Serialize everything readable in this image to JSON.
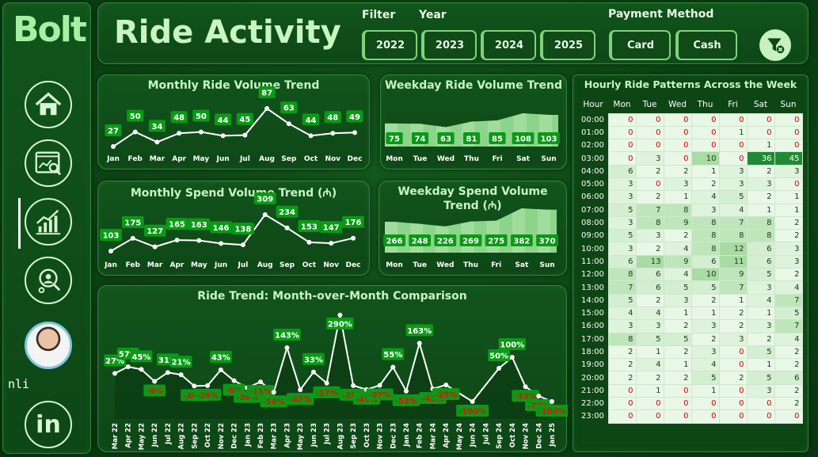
{
  "brand": {
    "logo": "Bolt",
    "user_label": "nli"
  },
  "header": {
    "title": "Ride Activity",
    "filter_label": "Filter",
    "year_label": "Year",
    "payment_label": "Payment Method",
    "years": [
      "2022",
      "2023",
      "2024",
      "2025"
    ],
    "payments": [
      "Card",
      "Cash"
    ]
  },
  "colors": {
    "accent": "#a7f0a3",
    "label_bg": "#0a9a16",
    "label_text": "#ffffff",
    "neg_text": "#e01010"
  },
  "monthly_rides": {
    "title": "Monthly Ride Volume Trend",
    "chart_data": {
      "type": "line",
      "categories": [
        "Jan",
        "Feb",
        "Mar",
        "Apr",
        "May",
        "Jun",
        "Jul",
        "Aug",
        "Sep",
        "Oct",
        "Nov",
        "Dec"
      ],
      "values": [
        27,
        50,
        34,
        48,
        50,
        44,
        45,
        87,
        63,
        44,
        48,
        49
      ]
    }
  },
  "monthly_spend": {
    "title": "Monthly Spend Volume Trend (₼)",
    "chart_data": {
      "type": "line",
      "categories": [
        "Jan",
        "Feb",
        "Mar",
        "Apr",
        "May",
        "Jun",
        "Jul",
        "Aug",
        "Sep",
        "Oct",
        "Nov",
        "Dec"
      ],
      "values": [
        103,
        175,
        127,
        165,
        163,
        146,
        138,
        309,
        234,
        153,
        147,
        176
      ]
    }
  },
  "weekday_rides": {
    "title": "Weekday Ride Volume Trend",
    "chart_data": {
      "type": "area",
      "categories": [
        "Mon",
        "Tue",
        "Wed",
        "Thu",
        "Fri",
        "Sat",
        "Sun"
      ],
      "values": [
        75,
        74,
        63,
        81,
        85,
        108,
        103
      ]
    }
  },
  "weekday_spend": {
    "title": "Weekday Spend Volume Trend (₼)",
    "chart_data": {
      "type": "area",
      "categories": [
        "Mon",
        "Tue",
        "Wed",
        "Thu",
        "Fri",
        "Sat",
        "Sun"
      ],
      "values": [
        266,
        248,
        226,
        269,
        275,
        382,
        370
      ]
    }
  },
  "mom": {
    "title": "Ride Trend: Month-over-Month Comparison",
    "chart_data": {
      "type": "line",
      "categories": [
        "Mar 22",
        "Apr 22",
        "May 22",
        "Jun 22",
        "Jul 22",
        "Aug 22",
        "Sep 22",
        "Oct 22",
        "Nov 22",
        "Dec 22",
        "Jan 23",
        "Feb 23",
        "Mar 23",
        "Apr 23",
        "May 23",
        "Jun 23",
        "Jul 23",
        "Aug 23",
        "Sep 23",
        "Oct 23",
        "Nov 23",
        "Dec 23",
        "Jan 24",
        "Feb 24",
        "Mar 24",
        "Apr 24",
        "May 24",
        "Jun 24",
        "Jul 24",
        "Sep 24",
        "Oct 24",
        "Nov 24",
        "Dec 24",
        "Jan 25"
      ],
      "values": [
        27,
        57,
        45,
        -9,
        31,
        21,
        -30,
        -28,
        43,
        -6,
        -38,
        -11,
        -58,
        143,
        -47,
        33,
        -17,
        290,
        -28,
        -46,
        -27,
        55,
        -53,
        163,
        -43,
        -25,
        null,
        -100,
        null,
        50,
        100,
        -33,
        -75,
        -100
      ],
      "labels": [
        "27%",
        "57%",
        "45%",
        "-9%",
        "31%",
        "21%",
        "-30%",
        "-28%",
        "43%",
        "-6%",
        "-38%",
        "-11%",
        "-58%",
        "143%",
        "-47%",
        "33%",
        "-17%",
        "290%",
        "-28%",
        "-46%",
        "-27%",
        "55%",
        "-53%",
        "163%",
        "-43%",
        "-25%",
        "",
        "-100%",
        "",
        "50%",
        "100%",
        "-33%",
        "-75%",
        "-100%"
      ]
    }
  },
  "heatmap": {
    "title": "Hourly Ride Patterns Across the Week",
    "chart_data": {
      "type": "heatmap",
      "columns": [
        "Hour",
        "Mon",
        "Tue",
        "Wed",
        "Thu",
        "Fri",
        "Sat",
        "Sun"
      ],
      "rows": [
        [
          "00:00",
          0,
          0,
          0,
          0,
          0,
          0,
          0
        ],
        [
          "01:00",
          0,
          0,
          0,
          0,
          1,
          0,
          0
        ],
        [
          "02:00",
          0,
          0,
          0,
          0,
          0,
          1,
          0
        ],
        [
          "03:00",
          0,
          3,
          0,
          10,
          0,
          36,
          45
        ],
        [
          "04:00",
          6,
          2,
          2,
          1,
          3,
          2,
          3
        ],
        [
          "05:00",
          3,
          0,
          3,
          2,
          3,
          3,
          0
        ],
        [
          "06:00",
          3,
          2,
          1,
          4,
          5,
          2,
          1
        ],
        [
          "07:00",
          5,
          7,
          8,
          3,
          4,
          1,
          1
        ],
        [
          "08:00",
          3,
          8,
          9,
          8,
          7,
          8,
          2
        ],
        [
          "09:00",
          5,
          3,
          2,
          8,
          8,
          8,
          2
        ],
        [
          "10:00",
          3,
          2,
          4,
          8,
          12,
          6,
          3
        ],
        [
          "11:00",
          6,
          13,
          9,
          6,
          11,
          6,
          3
        ],
        [
          "12:00",
          8,
          6,
          4,
          10,
          9,
          5,
          2
        ],
        [
          "13:00",
          7,
          6,
          5,
          5,
          7,
          3,
          4
        ],
        [
          "14:00",
          5,
          2,
          3,
          2,
          1,
          4,
          7
        ],
        [
          "15:00",
          4,
          4,
          1,
          1,
          2,
          1,
          5
        ],
        [
          "16:00",
          3,
          3,
          2,
          3,
          2,
          3,
          7
        ],
        [
          "17:00",
          8,
          5,
          5,
          2,
          3,
          2,
          4
        ],
        [
          "18:00",
          2,
          1,
          2,
          3,
          0,
          5,
          2
        ],
        [
          "19:00",
          2,
          4,
          1,
          4,
          0,
          1,
          2
        ],
        [
          "20:00",
          2,
          2,
          2,
          5,
          2,
          5,
          6
        ],
        [
          "21:00",
          0,
          1,
          0,
          1,
          0,
          3,
          2
        ],
        [
          "22:00",
          0,
          0,
          0,
          0,
          0,
          0,
          2
        ],
        [
          "23:00",
          0,
          0,
          0,
          0,
          0,
          0,
          0
        ]
      ]
    }
  }
}
